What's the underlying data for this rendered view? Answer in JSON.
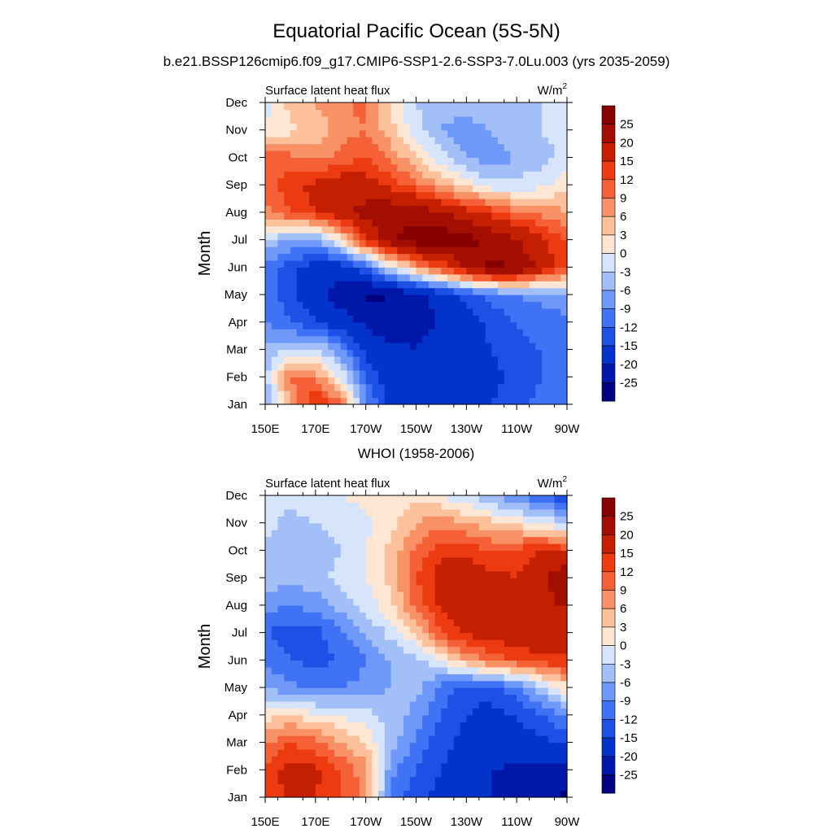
{
  "page": {
    "title": "Equatorial Pacific Ocean (5S-5N)",
    "subtitle": "b.e21.BSSP126cmip6.f09_g17.CMIP6-SSP1-2.6-SSP3-7.0Lu.003 (yrs 2035-2059)"
  },
  "chart_data": [
    {
      "type": "heatmap",
      "title": "",
      "left_string": "Surface latent heat flux",
      "units": "W/m",
      "units_superscript": "2",
      "xlabel": "",
      "ylabel": "Month",
      "x_ticks": [
        "150E",
        "170E",
        "170W",
        "150W",
        "130W",
        "110W",
        "90W"
      ],
      "y_ticks": [
        "Jan",
        "Feb",
        "Mar",
        "Apr",
        "May",
        "Jun",
        "Jul",
        "Aug",
        "Sep",
        "Oct",
        "Nov",
        "Dec"
      ],
      "xlim": [
        150,
        270
      ],
      "ylim": [
        "Jan",
        "Dec"
      ],
      "x": [
        150,
        160,
        170,
        180,
        190,
        200,
        210,
        220,
        230,
        240,
        250,
        260,
        270
      ],
      "colorbar": {
        "levels": [
          -25,
          -20,
          -15,
          -12,
          -9,
          -6,
          -3,
          0,
          3,
          6,
          9,
          12,
          15,
          20,
          25
        ],
        "colors": [
          "#000080",
          "#0018aa",
          "#0433cc",
          "#1e50e6",
          "#3f72f4",
          "#6e98fa",
          "#a3bff8",
          "#d6e5fb",
          "#fde6d3",
          "#fcc09a",
          "#f99166",
          "#f56036",
          "#ec3b10",
          "#c42000",
          "#a30e00",
          "#860000"
        ]
      },
      "z": [
        [
          -8,
          6,
          16,
          10,
          -8,
          -16,
          -18,
          -17,
          -18,
          -15,
          -13,
          -11,
          -10
        ],
        [
          -4,
          10,
          8,
          0,
          -12,
          -18,
          -19,
          -18,
          -18,
          -16,
          -14,
          -12,
          -11
        ],
        [
          -5,
          -3,
          -2,
          -8,
          -16,
          -19,
          -20,
          -19,
          -17,
          -15,
          -13,
          -12,
          -11
        ],
        [
          -9,
          -12,
          -15,
          -18,
          -21,
          -24,
          -21,
          -20,
          -17,
          -14,
          -12,
          -11,
          -10
        ],
        [
          -10,
          -14,
          -18,
          -22,
          -26,
          -25,
          -22,
          -18,
          -14,
          -11,
          -9,
          -8,
          -7
        ],
        [
          -10,
          -14,
          -17,
          -18,
          -12,
          -2,
          6,
          12,
          20,
          26,
          25,
          18,
          12
        ],
        [
          -4,
          -6,
          -8,
          2,
          14,
          24,
          28,
          29,
          27,
          24,
          20,
          16,
          12
        ],
        [
          8,
          12,
          15,
          18,
          22,
          24,
          23,
          20,
          17,
          14,
          10,
          8,
          6
        ],
        [
          10,
          14,
          16,
          18,
          17,
          14,
          10,
          6,
          2,
          -2,
          -2,
          -1,
          2
        ],
        [
          12,
          10,
          8,
          10,
          12,
          8,
          4,
          -2,
          -6,
          -8,
          -6,
          -4,
          -2
        ],
        [
          0,
          2,
          4,
          8,
          9,
          4,
          -2,
          -6,
          -8,
          -6,
          -4,
          -3,
          -2
        ],
        [
          -1,
          4,
          6,
          8,
          10,
          2,
          -3,
          -5,
          -4,
          -3,
          -3,
          -3,
          -2
        ]
      ]
    },
    {
      "type": "heatmap",
      "title": "WHOI (1958-2006)",
      "left_string": "Surface latent heat flux",
      "units": "W/m",
      "units_superscript": "2",
      "xlabel": "",
      "ylabel": "Month",
      "x_ticks": [
        "150E",
        "170E",
        "170W",
        "150W",
        "130W",
        "110W",
        "90W"
      ],
      "y_ticks": [
        "Jan",
        "Feb",
        "Mar",
        "Apr",
        "May",
        "Jun",
        "Jul",
        "Aug",
        "Sep",
        "Oct",
        "Nov",
        "Dec"
      ],
      "xlim": [
        150,
        270
      ],
      "ylim": [
        "Jan",
        "Dec"
      ],
      "x": [
        150,
        160,
        170,
        180,
        190,
        200,
        210,
        220,
        230,
        240,
        250,
        260,
        270
      ],
      "colorbar": {
        "levels": [
          -25,
          -20,
          -15,
          -12,
          -9,
          -6,
          -3,
          0,
          3,
          6,
          9,
          12,
          15,
          20,
          25
        ],
        "colors": [
          "#000080",
          "#0018aa",
          "#0433cc",
          "#1e50e6",
          "#3f72f4",
          "#6e98fa",
          "#a3bff8",
          "#d6e5fb",
          "#fde6d3",
          "#fcc09a",
          "#f99166",
          "#f56036",
          "#ec3b10",
          "#c42000",
          "#a30e00",
          "#860000"
        ]
      },
      "z": [
        [
          12,
          16,
          15,
          12,
          8,
          -10,
          -14,
          -16,
          -18,
          -20,
          -22,
          -24,
          -26
        ],
        [
          13,
          17,
          16,
          12,
          7,
          -8,
          -12,
          -15,
          -18,
          -20,
          -21,
          -22,
          -23
        ],
        [
          8,
          12,
          10,
          6,
          3,
          -4,
          -10,
          -14,
          -16,
          -17,
          -17,
          -16,
          -14
        ],
        [
          2,
          3,
          1,
          0,
          -2,
          -4,
          -7,
          -12,
          -15,
          -16,
          -15,
          -12,
          -8
        ],
        [
          -6,
          -8,
          -10,
          -9,
          -8,
          -6,
          -5,
          -10,
          -14,
          -14,
          -10,
          -4,
          2
        ],
        [
          -10,
          -12,
          -13,
          -12,
          -9,
          -6,
          -4,
          0,
          6,
          10,
          12,
          14,
          14
        ],
        [
          -12,
          -14,
          -13,
          -10,
          -6,
          -2,
          3,
          12,
          16,
          17,
          18,
          19,
          19
        ],
        [
          -8,
          -9,
          -8,
          -5,
          -2,
          2,
          10,
          16,
          19,
          18,
          17,
          19,
          20
        ],
        [
          -4,
          -5,
          -4,
          -2,
          0,
          4,
          12,
          17,
          18,
          16,
          15,
          18,
          26
        ],
        [
          -4,
          -6,
          -5,
          -3,
          0,
          4,
          10,
          14,
          14,
          12,
          13,
          15,
          14
        ],
        [
          -2,
          -4,
          -3,
          -2,
          -1,
          2,
          6,
          8,
          6,
          4,
          2,
          0,
          -4
        ],
        [
          -3,
          -2,
          -1,
          0,
          1,
          2,
          2,
          0,
          -3,
          -6,
          -9,
          -12,
          -16
        ]
      ]
    }
  ]
}
